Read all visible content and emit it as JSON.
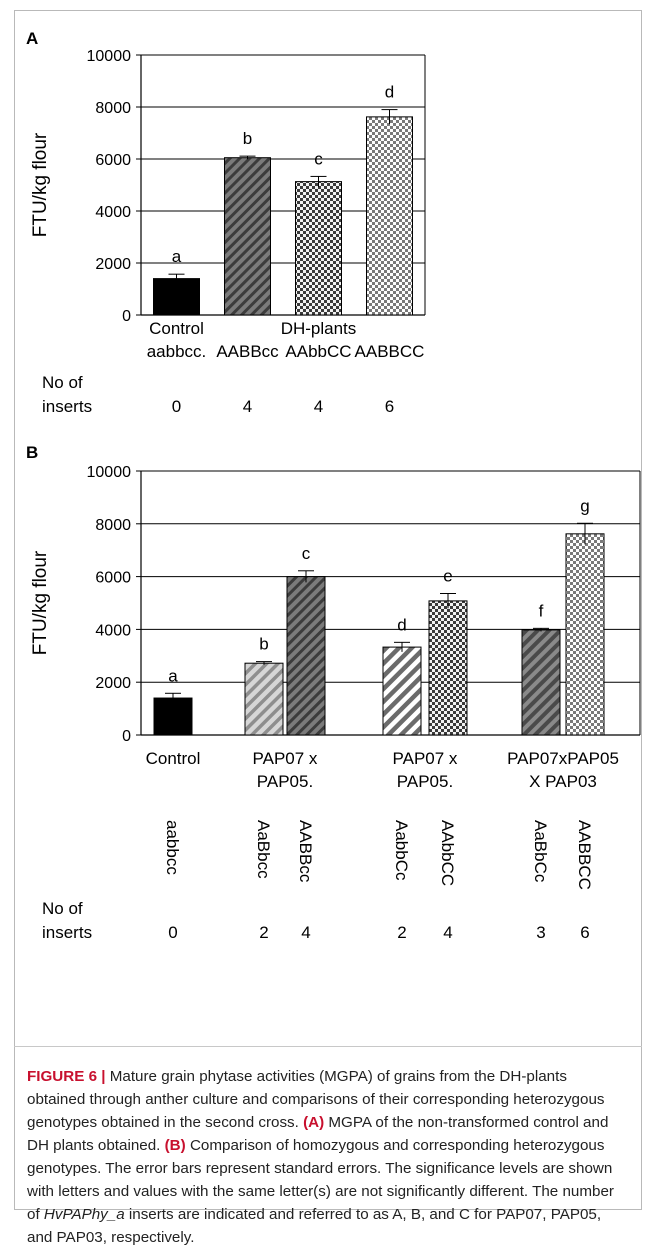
{
  "chart_data": [
    {
      "panel": "A",
      "type": "bar",
      "ylabel": "FTU/kg flour",
      "ylim": [
        0,
        10000
      ],
      "yticks": [
        0,
        2000,
        4000,
        6000,
        8000,
        10000
      ],
      "grid": true,
      "categories": [
        "Control aabbcc.",
        "AABBcc",
        "AAbbCC",
        "AABBCC"
      ],
      "category_labels": [
        [
          "Control",
          "aabbcc."
        ],
        [
          "AABBcc"
        ],
        [
          "DH-plants",
          "AAbbCC"
        ],
        [
          "AABBCC"
        ]
      ],
      "values": [
        1400,
        6050,
        5130,
        7620
      ],
      "errors": [
        170,
        60,
        200,
        280
      ],
      "letters": [
        "a",
        "b",
        "c",
        "d"
      ],
      "patterns": [
        "solid-black",
        "diagonal-dark",
        "check-fine",
        "check-coarse"
      ],
      "inserts_label": [
        "No of",
        "inserts"
      ],
      "inserts": [
        "0",
        "4",
        "4",
        "6"
      ]
    },
    {
      "panel": "B",
      "type": "bar",
      "ylabel": "FTU/kg flour",
      "ylim": [
        0,
        10000
      ],
      "yticks": [
        0,
        2000,
        4000,
        6000,
        8000,
        10000
      ],
      "grid": true,
      "groups": [
        {
          "label": [
            "Control"
          ]
        },
        {
          "label": [
            "PAP07 x",
            "PAP05."
          ]
        },
        {
          "label": [
            "PAP07 x",
            "PAP05."
          ]
        },
        {
          "label": [
            "PAP07xPAP05",
            "X PAP03"
          ]
        }
      ],
      "categories": [
        "aabbcc",
        "AaBbcc",
        "AABBcc",
        "AabbCc",
        "AAbbCC",
        "AaBbCc",
        "AABBCC"
      ],
      "values": [
        1400,
        2720,
        6000,
        3330,
        5080,
        3980,
        7620
      ],
      "errors": [
        180,
        60,
        220,
        180,
        280,
        60,
        400
      ],
      "letters": [
        "a",
        "b",
        "c",
        "d",
        "e",
        "f",
        "g"
      ],
      "patterns": [
        "solid-black",
        "diagonal-light",
        "diagonal-dark",
        "diagonal-white",
        "check-fine",
        "diagonal-dark2",
        "check-coarse"
      ],
      "inserts_label": [
        "No of",
        "inserts"
      ],
      "inserts": [
        "0",
        "2",
        "4",
        "2",
        "4",
        "3",
        "6"
      ]
    }
  ],
  "panel_labels": {
    "a": "A",
    "b": "B"
  },
  "caption": {
    "figure_label": "FIGURE 6 |",
    "intro": " Mature grain phytase activities (MGPA) of grains from the DH-plants obtained through anther culture and comparisons of their corresponding heterozygous genotypes obtained in the second cross. ",
    "a_label": "(A)",
    "a_text": " MGPA of the non-transformed control and DH plants obtained. ",
    "b_label": "(B)",
    "b_text": " Comparison of homozygous and corresponding heterozygous genotypes. The error bars represent standard errors. The significance levels are shown with letters and values with the same letter(s) are not significantly different. The number of ",
    "gene": "HvPAPhy_a",
    "end_text": " inserts are indicated and referred to as A, B, and C for PAP07, PAP05, and PAP03, respectively."
  },
  "colors": {
    "caption_accent": "#c8102e",
    "frame": "#b9b9b9"
  }
}
